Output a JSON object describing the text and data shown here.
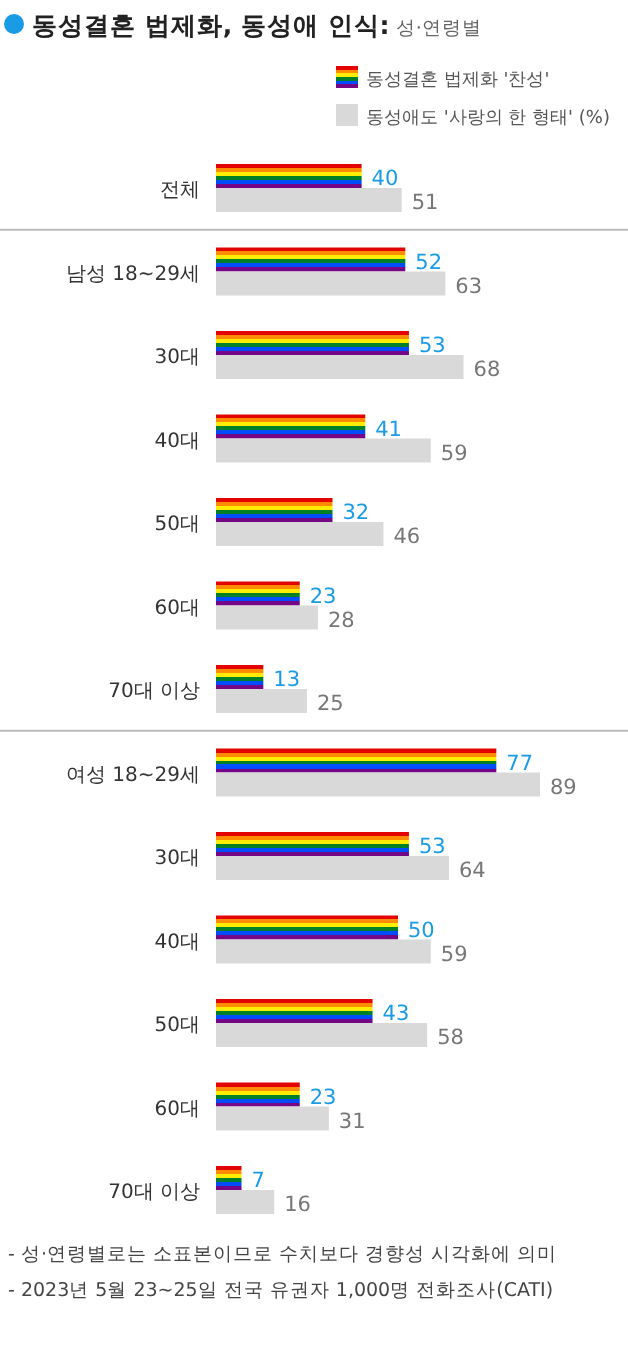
{
  "chart_data": {
    "type": "bar",
    "orientation": "horizontal",
    "title": "동성결혼 법제화, 동성애 인식:",
    "subtitle": "성·연령별",
    "categories": [
      "전체",
      "남성 18~29세",
      "30대",
      "40대",
      "50대",
      "60대",
      "70대 이상",
      "여성 18~29세",
      "30대",
      "40대",
      "50대",
      "60대",
      "70대 이상"
    ],
    "series": [
      {
        "name": "동성결혼 법제화 '찬성'",
        "color": "#ff8c00",
        "values": [
          40,
          52,
          53,
          41,
          32,
          23,
          13,
          77,
          53,
          50,
          43,
          23,
          7
        ]
      },
      {
        "name": "동성애도 '사랑의 한 형태' (%)",
        "color": "#d9d9d9",
        "values": [
          51,
          63,
          68,
          59,
          46,
          28,
          25,
          89,
          64,
          59,
          58,
          31,
          16
        ]
      }
    ],
    "data_labels": true,
    "legend": "top right",
    "annotations": [
      "- 성·연령별로는 소표본이므로 수치보다 경향성 시각화에 의미",
      "- 2023년 5월 23~25일 전국 유권자 1,000명 전화조사(CATI)"
    ]
  }
}
